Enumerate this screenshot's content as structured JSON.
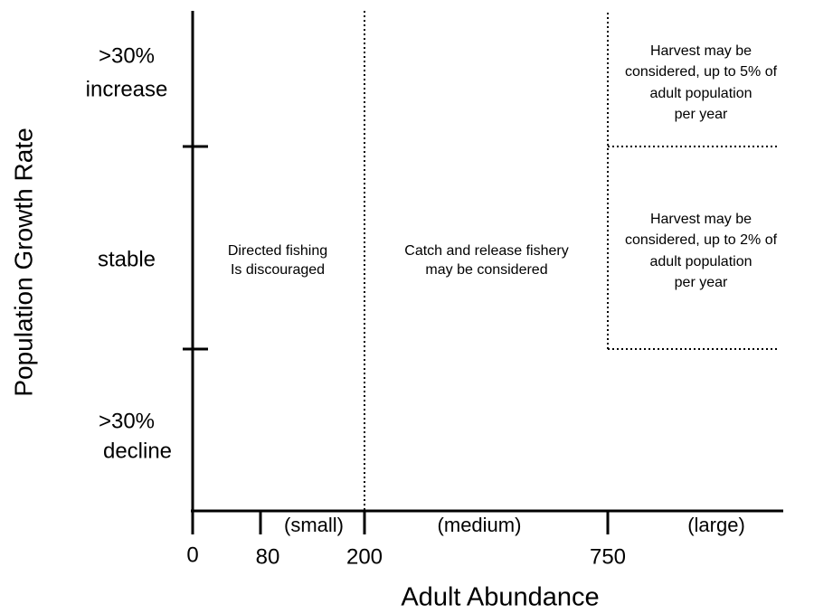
{
  "y_axis": {
    "title": "Population Growth Rate",
    "levels": [
      {
        "lines": [
          ">30%",
          "increase"
        ]
      },
      {
        "lines": [
          "stable"
        ]
      },
      {
        "lines": [
          ">30%",
          "decline"
        ]
      }
    ]
  },
  "x_axis": {
    "title": "Adult Abundance",
    "ticks": [
      "0",
      "80",
      "200",
      "750"
    ],
    "size_classes": [
      "(small)",
      "(medium)",
      "(large)"
    ]
  },
  "zones": [
    {
      "lines": [
        "Directed fishing",
        "Is discouraged"
      ]
    },
    {
      "lines": [
        "Catch and release fishery",
        "may be considered"
      ]
    },
    {
      "lines": [
        "Harvest may be",
        "considered, up to 5% of",
        "adult population",
        "per year"
      ]
    },
    {
      "lines": [
        "Harvest may be",
        "considered, up to 2% of",
        "adult population",
        "per year"
      ]
    }
  ]
}
